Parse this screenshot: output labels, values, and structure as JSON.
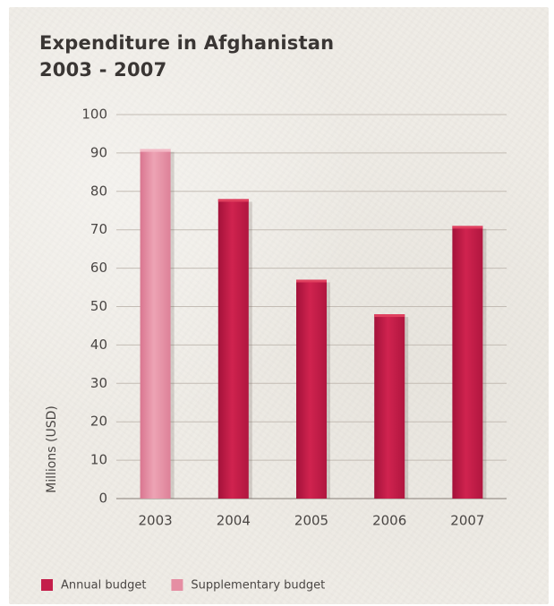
{
  "chart_data": {
    "type": "bar",
    "title": "Expenditure in Afghanistan",
    "subtitle": "2003 - 2007",
    "categories": [
      "2003",
      "2004",
      "2005",
      "2006",
      "2007"
    ],
    "values": [
      91,
      78,
      57,
      48,
      71
    ],
    "bar_series": [
      "Supplementary budget",
      "Annual budget",
      "Annual budget",
      "Annual budget",
      "Annual budget"
    ],
    "series": [
      {
        "name": "Annual budget",
        "values": [
          null,
          78,
          57,
          48,
          71
        ],
        "color": "#c41e4a"
      },
      {
        "name": "Supplementary budget",
        "values": [
          91,
          null,
          null,
          null,
          null
        ],
        "color": "#e58ea3"
      }
    ],
    "xlabel": "",
    "ylabel": "Millions (USD)",
    "ylim": [
      0,
      100
    ],
    "yticks": [
      "0",
      "10",
      "20",
      "30",
      "40",
      "50",
      "60",
      "70",
      "80",
      "90",
      "100"
    ],
    "grid": true,
    "legend_position": "bottom-left",
    "legend": [
      {
        "label": "Annual budget",
        "color": "#c41e4a"
      },
      {
        "label": "Supplementary budget",
        "color": "#e58ea3"
      }
    ]
  }
}
